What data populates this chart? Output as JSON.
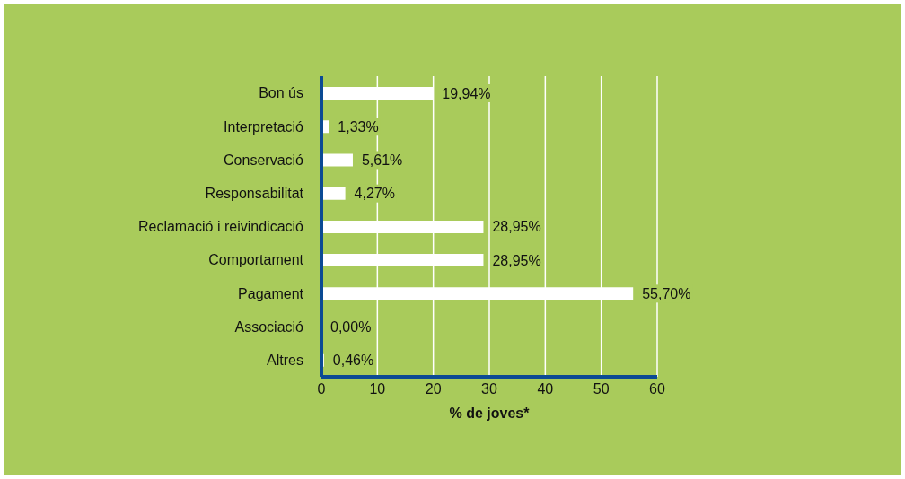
{
  "chart_data": {
    "type": "bar",
    "orientation": "horizontal",
    "categories": [
      "Bon ús",
      "Interpretació",
      "Conservació",
      "Responsabilitat",
      "Reclamació i reivindicació",
      "Comportament",
      "Pagament",
      "Associació",
      "Altres"
    ],
    "values": [
      19.94,
      1.33,
      5.61,
      4.27,
      28.95,
      28.95,
      55.7,
      0.0,
      0.46
    ],
    "value_labels": [
      "19,94%",
      "1,33%",
      "5,61%",
      "4,27%",
      "28,95%",
      "28,95%",
      "55,70%",
      "0,00%",
      "0,46%"
    ],
    "color": "#ffffff",
    "xlabel": "% de joves*",
    "xlim": [
      0,
      60
    ],
    "xticks": [
      0,
      10,
      20,
      30,
      40,
      50,
      60
    ],
    "grid": "x"
  }
}
